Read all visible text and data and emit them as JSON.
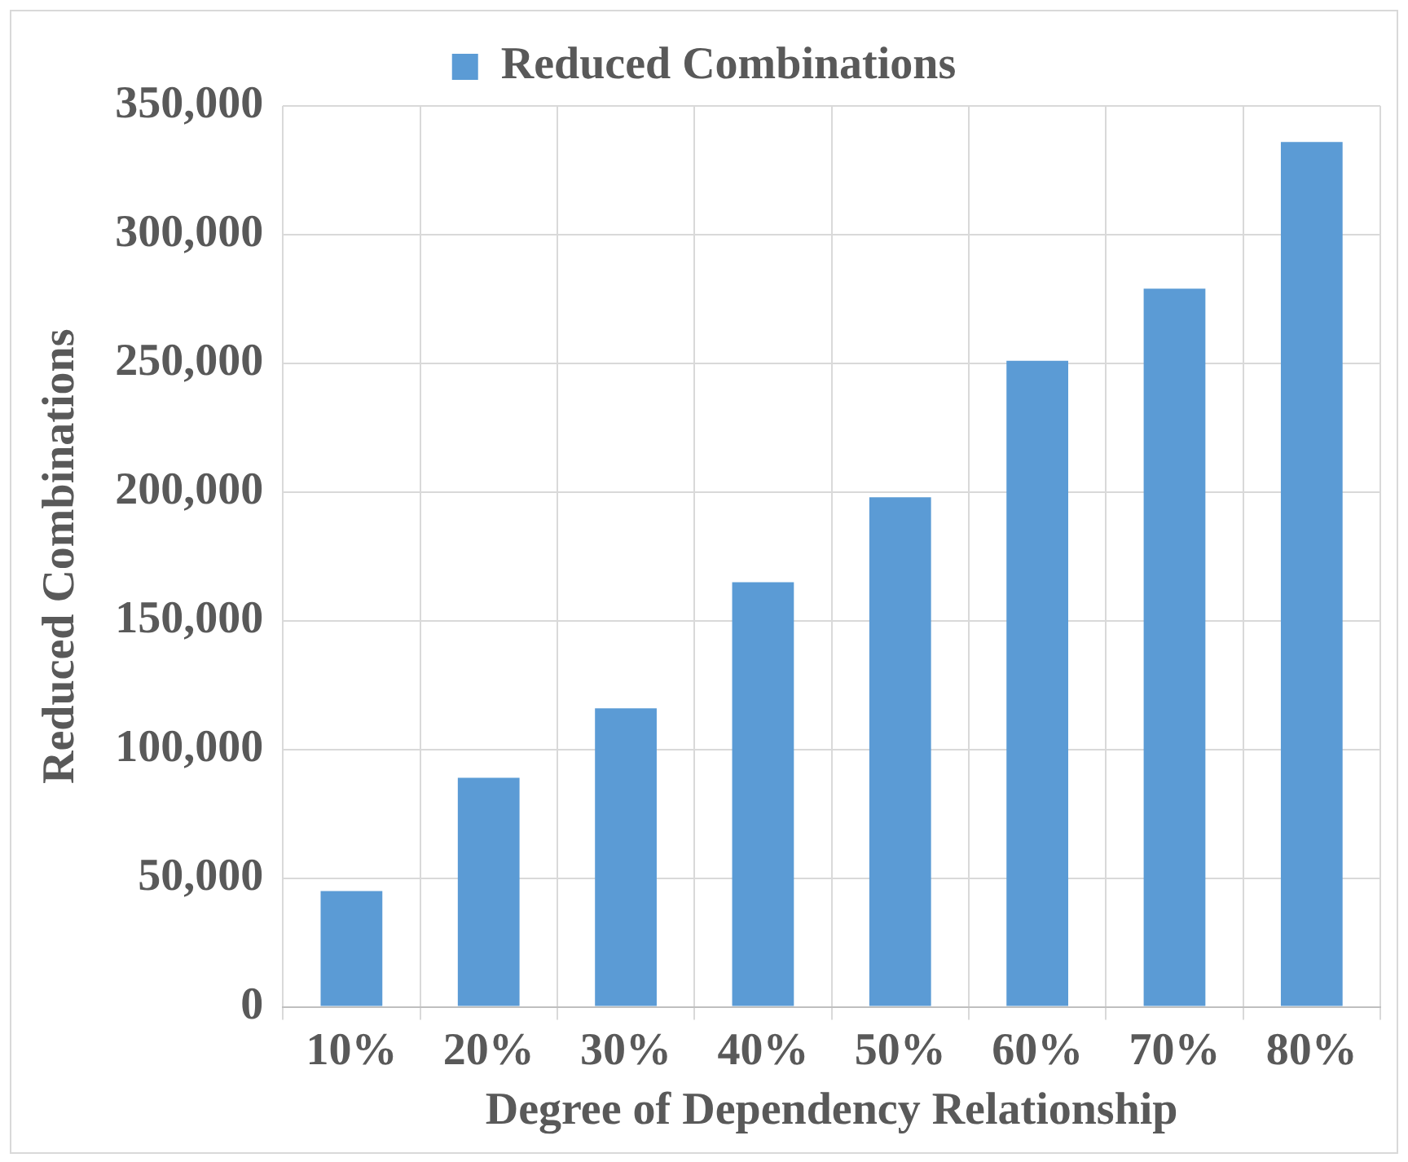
{
  "chart_data": {
    "type": "bar",
    "xlabel": "Degree of Dependency Relationship",
    "ylabel": "Reduced Combinations",
    "categories": [
      "10%",
      "20%",
      "30%",
      "40%",
      "50%",
      "60%",
      "70%",
      "80%"
    ],
    "series": [
      {
        "name": "Reduced Combinations",
        "color": "#5b9bd5",
        "values": [
          45000,
          89000,
          116000,
          165000,
          198000,
          251000,
          279000,
          336000
        ]
      }
    ],
    "ylim": [
      0,
      350000
    ],
    "yticks": [
      0,
      {
        "value": 50000,
        "label": "50,000"
      },
      {
        "value": 100000,
        "label": "100,000"
      },
      {
        "value": 150000,
        "label": "150,000"
      },
      {
        "value": 200000,
        "label": "200,000"
      },
      {
        "value": 250000,
        "label": "250,000"
      },
      {
        "value": 300000,
        "label": "300,000"
      },
      {
        "value": 350000,
        "label": "350,000"
      }
    ],
    "grid": true,
    "legend": "top"
  }
}
